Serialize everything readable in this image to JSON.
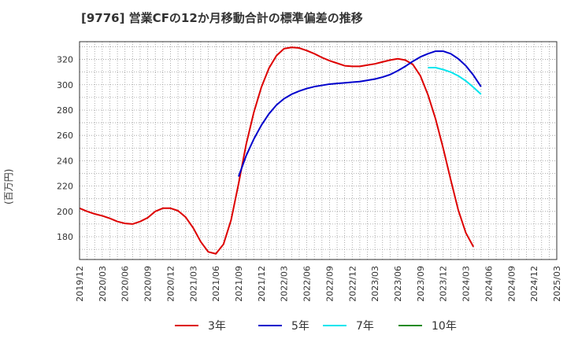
{
  "title": "[9776]  営業CFの12か月移動合計の標準偏差の推移",
  "chart_data": {
    "type": "line",
    "title": "[9776]  営業CFの12か月移動合計の標準偏差の推移",
    "xlabel": "",
    "ylabel": "(百万円)",
    "ylim": [
      162,
      334
    ],
    "yticks": [
      180,
      200,
      220,
      240,
      260,
      280,
      300,
      320
    ],
    "x_ticks": [
      "2019/12",
      "2020/03",
      "2020/06",
      "2020/09",
      "2020/12",
      "2021/03",
      "2021/06",
      "2021/09",
      "2021/12",
      "2022/03",
      "2022/06",
      "2022/09",
      "2022/12",
      "2023/03",
      "2023/06",
      "2023/09",
      "2023/12",
      "2024/03",
      "2024/06",
      "2024/09",
      "2024/12",
      "2025/03"
    ],
    "grid": true,
    "legend_position": "bottom",
    "series": [
      {
        "name": "3年",
        "color": "#dd0000",
        "points": [
          [
            "2019/12",
            202.5
          ],
          [
            "2020/01",
            200
          ],
          [
            "2020/02",
            198
          ],
          [
            "2020/03",
            196.5
          ],
          [
            "2020/04",
            194.5
          ],
          [
            "2020/05",
            192
          ],
          [
            "2020/06",
            190.5
          ],
          [
            "2020/07",
            190
          ],
          [
            "2020/08",
            192
          ],
          [
            "2020/09",
            195
          ],
          [
            "2020/10",
            200
          ],
          [
            "2020/11",
            202.5
          ],
          [
            "2020/12",
            202.5
          ],
          [
            "2021/01",
            200.5
          ],
          [
            "2021/02",
            195.5
          ],
          [
            "2021/03",
            187
          ],
          [
            "2021/04",
            176
          ],
          [
            "2021/05",
            168
          ],
          [
            "2021/06",
            166.5
          ],
          [
            "2021/07",
            174
          ],
          [
            "2021/08",
            193
          ],
          [
            "2021/09",
            222
          ],
          [
            "2021/10",
            253
          ],
          [
            "2021/11",
            278
          ],
          [
            "2021/12",
            298
          ],
          [
            "2022/01",
            313
          ],
          [
            "2022/02",
            323
          ],
          [
            "2022/03",
            328.5
          ],
          [
            "2022/04",
            329.5
          ],
          [
            "2022/05",
            329
          ],
          [
            "2022/06",
            327
          ],
          [
            "2022/07",
            324.5
          ],
          [
            "2022/08",
            321.5
          ],
          [
            "2022/09",
            319
          ],
          [
            "2022/10",
            317
          ],
          [
            "2022/11",
            315
          ],
          [
            "2022/12",
            314.5
          ],
          [
            "2023/01",
            314.5
          ],
          [
            "2023/02",
            315.5
          ],
          [
            "2023/03",
            316.5
          ],
          [
            "2023/04",
            318
          ],
          [
            "2023/05",
            319.5
          ],
          [
            "2023/06",
            320.5
          ],
          [
            "2023/07",
            319.5
          ],
          [
            "2023/08",
            316
          ],
          [
            "2023/09",
            307
          ],
          [
            "2023/10",
            292
          ],
          [
            "2023/11",
            273
          ],
          [
            "2023/12",
            250
          ],
          [
            "2024/01",
            225
          ],
          [
            "2024/02",
            201
          ],
          [
            "2024/03",
            183
          ],
          [
            "2024/04",
            172
          ]
        ]
      },
      {
        "name": "5年",
        "color": "#0000cc",
        "points": [
          [
            "2021/09",
            227.5
          ],
          [
            "2021/10",
            244
          ],
          [
            "2021/11",
            257
          ],
          [
            "2021/12",
            268
          ],
          [
            "2022/01",
            277
          ],
          [
            "2022/02",
            284
          ],
          [
            "2022/03",
            289
          ],
          [
            "2022/04",
            292.5
          ],
          [
            "2022/05",
            295
          ],
          [
            "2022/06",
            297
          ],
          [
            "2022/07",
            298.5
          ],
          [
            "2022/08",
            299.5
          ],
          [
            "2022/09",
            300.5
          ],
          [
            "2022/10",
            301
          ],
          [
            "2022/11",
            301.5
          ],
          [
            "2022/12",
            302
          ],
          [
            "2023/01",
            302.5
          ],
          [
            "2023/02",
            303.5
          ],
          [
            "2023/03",
            304.5
          ],
          [
            "2023/04",
            306
          ],
          [
            "2023/05",
            308
          ],
          [
            "2023/06",
            311
          ],
          [
            "2023/07",
            314.5
          ],
          [
            "2023/08",
            318.5
          ],
          [
            "2023/09",
            322
          ],
          [
            "2023/10",
            324.5
          ],
          [
            "2023/11",
            326.5
          ],
          [
            "2023/12",
            326.5
          ],
          [
            "2024/01",
            324.5
          ],
          [
            "2024/02",
            320.5
          ],
          [
            "2024/03",
            315
          ],
          [
            "2024/04",
            307.5
          ],
          [
            "2024/05",
            298.5
          ]
        ]
      },
      {
        "name": "7年",
        "color": "#00e5ee",
        "points": [
          [
            "2023/10",
            313.5
          ],
          [
            "2023/11",
            313.5
          ],
          [
            "2023/12",
            312
          ],
          [
            "2024/01",
            310
          ],
          [
            "2024/02",
            307
          ],
          [
            "2024/03",
            303
          ],
          [
            "2024/04",
            298
          ],
          [
            "2024/05",
            292.5
          ]
        ]
      },
      {
        "name": "10年",
        "color": "#228b22",
        "points": []
      }
    ]
  }
}
